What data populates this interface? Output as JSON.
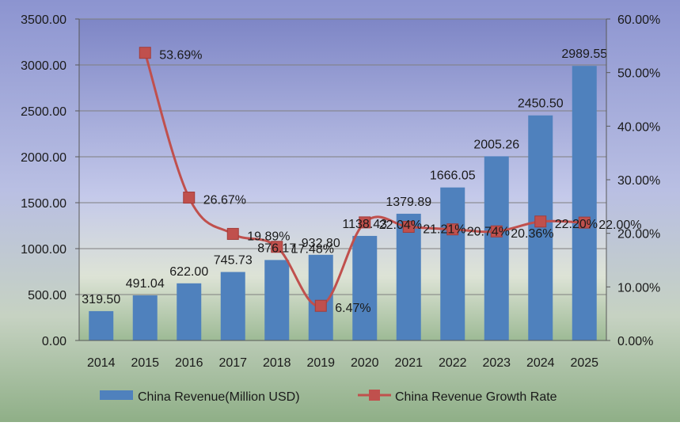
{
  "chart_data": {
    "type": "bar+line",
    "categories": [
      "2014",
      "2015",
      "2016",
      "2017",
      "2018",
      "2019",
      "2020",
      "2021",
      "2022",
      "2023",
      "2024",
      "2025"
    ],
    "series": [
      {
        "name": "China Revenue(Million USD)",
        "type": "bar",
        "axis": "left",
        "color": "#4F81BD",
        "values": [
          319.5,
          491.04,
          622.0,
          745.73,
          876.17,
          932.8,
          1138.43,
          1379.89,
          1666.05,
          2005.26,
          2450.5,
          2989.55
        ],
        "labels": [
          "319.50",
          "491.04",
          "622.00",
          "745.73",
          "876.17",
          "932.80",
          "1138.43",
          "1379.89",
          "1666.05",
          "2005.26",
          "2450.50",
          "2989.55"
        ]
      },
      {
        "name": "China Revenue Growth Rate",
        "type": "line",
        "axis": "right",
        "color": "#C0504D",
        "x": [
          "2015",
          "2016",
          "2017",
          "2018",
          "2019",
          "2020",
          "2021",
          "2022",
          "2023",
          "2024",
          "2025"
        ],
        "values": [
          53.69,
          26.67,
          19.89,
          17.48,
          6.47,
          22.04,
          21.21,
          20.74,
          20.36,
          22.2,
          22.0
        ],
        "labels": [
          "53.69%",
          "26.67%",
          "19.89%",
          "17.48%",
          "6.47%",
          "22.04%",
          "21.21%",
          "20.74%",
          "20.36%",
          "22.20%",
          "22.00%"
        ]
      }
    ],
    "y_left": {
      "min": 0,
      "max": 3500,
      "ticks": [
        "0.00",
        "500.00",
        "1000.00",
        "1500.00",
        "2000.00",
        "2500.00",
        "3000.00",
        "3500.00"
      ]
    },
    "y_right": {
      "min": 0,
      "max": 60,
      "ticks": [
        "0.00%",
        "10.00%",
        "20.00%",
        "30.00%",
        "40.00%",
        "50.00%",
        "60.00%"
      ]
    },
    "legend": {
      "position": "bottom",
      "items": [
        "China Revenue(Million USD)",
        "China Revenue Growth Rate"
      ]
    },
    "grid": true,
    "title": "",
    "xlabel": "",
    "ylabel": ""
  }
}
